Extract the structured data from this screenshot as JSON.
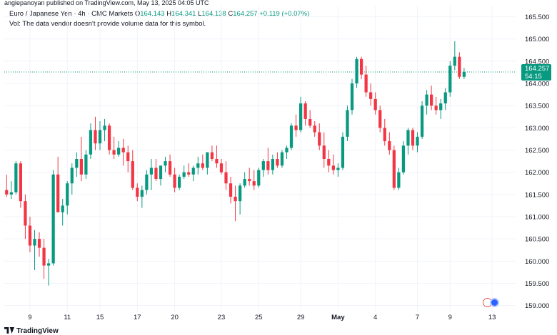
{
  "publish_line": "angiepanoyan published on TradingView.com, May 13, 2025 04:05 UTC",
  "legend": {
    "symbol": "Euro / Japanese Yen · 4h · CMC Markets",
    "o_label": "O",
    "o": "164.143",
    "h_label": "H",
    "h": "164.341",
    "l_label": "L",
    "l": "164.138",
    "c_label": "C",
    "c": "164.257",
    "change": "+0.119 (+0.07%)",
    "vol_note": "Vol: The data vendor doesn't provide volume data for this symbol."
  },
  "price_badge": {
    "price": "164.257",
    "countdown": "54:15"
  },
  "footer_logo": "TradingView",
  "colors": {
    "up": "#089981",
    "down": "#f23645",
    "grid": "#f0f3fa",
    "axis_text": "#131722",
    "last_price_line": "#089981"
  },
  "chart_data": {
    "type": "candlestick",
    "title": "Euro / Japanese Yen · 4h · CMC Markets",
    "ylim": [
      158.85,
      165.75
    ],
    "y_ticks": [
      "165.500",
      "165.000",
      "164.500",
      "164.000",
      "163.500",
      "163.000",
      "162.500",
      "162.000",
      "161.500",
      "161.000",
      "160.500",
      "160.000",
      "159.500",
      "159.000"
    ],
    "x_ticks": [
      {
        "label": "9",
        "i": 5
      },
      {
        "label": "11",
        "i": 13
      },
      {
        "label": "15",
        "i": 20
      },
      {
        "label": "17",
        "i": 28
      },
      {
        "label": "20",
        "i": 36
      },
      {
        "label": "23",
        "i": 46
      },
      {
        "label": "25",
        "i": 54
      },
      {
        "label": "29",
        "i": 63
      },
      {
        "label": "May",
        "i": 71,
        "bold": true
      },
      {
        "label": "4",
        "i": 79
      },
      {
        "label": "7",
        "i": 88
      },
      {
        "label": "9",
        "i": 95
      },
      {
        "label": "13",
        "i": 104
      }
    ],
    "last_price": 164.257,
    "candles": [
      [
        161.6,
        161.95,
        161.45,
        161.5
      ],
      [
        161.5,
        161.8,
        161.4,
        161.55
      ],
      [
        161.55,
        162.25,
        161.5,
        162.2
      ],
      [
        162.2,
        162.25,
        161.2,
        161.35
      ],
      [
        161.35,
        161.5,
        160.5,
        160.8
      ],
      [
        160.8,
        161.0,
        160.2,
        160.35
      ],
      [
        160.35,
        160.7,
        159.8,
        160.5
      ],
      [
        160.5,
        160.65,
        160.1,
        160.3
      ],
      [
        160.3,
        160.5,
        159.6,
        159.9
      ],
      [
        159.9,
        160.05,
        159.45,
        159.95
      ],
      [
        159.95,
        162.05,
        159.9,
        161.95
      ],
      [
        161.95,
        162.35,
        161.1,
        161.1
      ],
      [
        161.1,
        161.4,
        160.8,
        161.25
      ],
      [
        161.25,
        161.8,
        161.05,
        161.75
      ],
      [
        161.75,
        162.2,
        161.5,
        162.1
      ],
      [
        162.1,
        162.45,
        161.9,
        162.3
      ],
      [
        162.3,
        162.8,
        161.8,
        161.95
      ],
      [
        161.95,
        162.5,
        161.85,
        162.4
      ],
      [
        162.4,
        163.1,
        162.3,
        162.95
      ],
      [
        162.95,
        163.25,
        162.5,
        162.65
      ],
      [
        162.65,
        163.15,
        162.5,
        162.95
      ],
      [
        162.95,
        163.2,
        162.7,
        163.05
      ],
      [
        163.05,
        163.1,
        162.4,
        162.5
      ],
      [
        162.5,
        162.8,
        162.3,
        162.4
      ],
      [
        162.4,
        162.7,
        162.35,
        162.55
      ],
      [
        162.55,
        162.75,
        162.15,
        162.45
      ],
      [
        162.45,
        162.6,
        162.0,
        162.25
      ],
      [
        162.25,
        162.5,
        161.6,
        161.65
      ],
      [
        161.65,
        161.75,
        161.35,
        161.45
      ],
      [
        161.45,
        161.7,
        161.2,
        161.6
      ],
      [
        161.6,
        162.05,
        161.5,
        161.95
      ],
      [
        161.95,
        162.3,
        161.6,
        162.1
      ],
      [
        162.1,
        162.3,
        161.8,
        161.85
      ],
      [
        161.85,
        162.15,
        161.7,
        162.15
      ],
      [
        162.15,
        162.35,
        162.0,
        162.25
      ],
      [
        162.25,
        162.4,
        161.9,
        161.95
      ],
      [
        161.95,
        162.1,
        161.55,
        161.65
      ],
      [
        161.65,
        161.95,
        161.6,
        161.9
      ],
      [
        161.9,
        162.15,
        161.85,
        162.0
      ],
      [
        162.0,
        162.2,
        161.9,
        161.95
      ],
      [
        161.95,
        162.15,
        161.8,
        162.1
      ],
      [
        162.1,
        162.35,
        161.95,
        162.2
      ],
      [
        162.2,
        162.4,
        162.05,
        162.1
      ],
      [
        162.1,
        162.45,
        161.95,
        162.45
      ],
      [
        162.45,
        162.6,
        162.25,
        162.3
      ],
      [
        162.3,
        162.6,
        162.1,
        162.2
      ],
      [
        162.2,
        162.3,
        161.95,
        162.0
      ],
      [
        162.0,
        162.25,
        161.6,
        161.75
      ],
      [
        161.75,
        161.9,
        161.3,
        161.45
      ],
      [
        161.45,
        161.7,
        160.9,
        161.35
      ],
      [
        161.35,
        161.75,
        161.05,
        161.7
      ],
      [
        161.7,
        162.0,
        161.65,
        161.85
      ],
      [
        161.85,
        162.1,
        161.7,
        161.8
      ],
      [
        161.8,
        162.05,
        161.6,
        161.7
      ],
      [
        161.7,
        162.1,
        161.65,
        162.05
      ],
      [
        162.05,
        162.3,
        161.9,
        162.25
      ],
      [
        162.25,
        162.55,
        161.95,
        162.05
      ],
      [
        162.05,
        162.4,
        161.95,
        162.3
      ],
      [
        162.3,
        162.45,
        162.1,
        162.15
      ],
      [
        162.15,
        162.5,
        162.1,
        162.45
      ],
      [
        162.45,
        162.6,
        162.3,
        162.55
      ],
      [
        162.55,
        163.1,
        162.5,
        163.05
      ],
      [
        163.05,
        163.3,
        162.8,
        162.95
      ],
      [
        162.95,
        163.7,
        162.9,
        163.55
      ],
      [
        163.55,
        163.6,
        163.05,
        163.2
      ],
      [
        163.2,
        163.4,
        163.0,
        163.05
      ],
      [
        163.05,
        163.15,
        162.8,
        162.9
      ],
      [
        162.9,
        163.1,
        162.5,
        162.6
      ],
      [
        162.6,
        162.9,
        162.1,
        162.3
      ],
      [
        162.3,
        162.5,
        162.0,
        162.15
      ],
      [
        162.15,
        162.4,
        161.95,
        162.05
      ],
      [
        162.05,
        162.2,
        161.9,
        162.1
      ]
    ]
  }
}
